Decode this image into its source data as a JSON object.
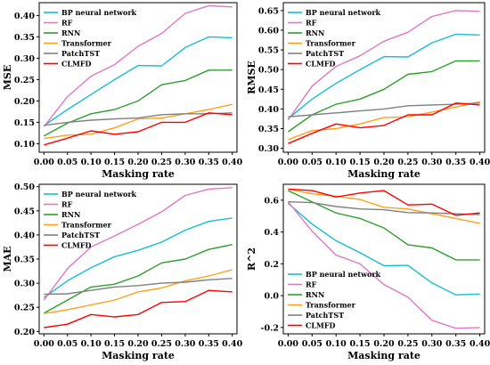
{
  "chart_data": [
    {
      "type": "line",
      "xlabel": "Masking rate",
      "ylabel": "MSE",
      "x": [
        0.0,
        0.05,
        0.1,
        0.15,
        0.2,
        0.25,
        0.3,
        0.35,
        0.4
      ],
      "xlim": [
        -0.01,
        0.41
      ],
      "ylim": [
        0.08,
        0.43
      ],
      "yticks": [
        0.1,
        0.15,
        0.2,
        0.25,
        0.3,
        0.35,
        0.4
      ],
      "ytick_decimals": 2,
      "legend_position": "top-left",
      "series": [
        {
          "name": "BP neural network",
          "color": "#17becf",
          "values": [
            0.142,
            0.18,
            0.215,
            0.25,
            0.283,
            0.282,
            0.325,
            0.35,
            0.348
          ]
        },
        {
          "name": "RF",
          "color": "#e377c2",
          "values": [
            0.14,
            0.21,
            0.258,
            0.285,
            0.328,
            0.358,
            0.405,
            0.423,
            0.42
          ]
        },
        {
          "name": "RNN",
          "color": "#2ca02c",
          "values": [
            0.118,
            0.148,
            0.17,
            0.18,
            0.2,
            0.238,
            0.248,
            0.272,
            0.272
          ]
        },
        {
          "name": "Transformer",
          "color": "#ff9f1c",
          "values": [
            0.112,
            0.12,
            0.122,
            0.137,
            0.158,
            0.16,
            0.17,
            0.18,
            0.192
          ]
        },
        {
          "name": "PatchTST",
          "color": "#808080",
          "values": [
            0.143,
            0.15,
            0.155,
            0.158,
            0.16,
            0.168,
            0.17,
            0.17,
            0.172
          ]
        },
        {
          "name": "CLMFD",
          "color": "#ff0000",
          "values": [
            0.097,
            0.113,
            0.13,
            0.122,
            0.128,
            0.15,
            0.15,
            0.172,
            0.168
          ]
        }
      ]
    },
    {
      "type": "line",
      "xlabel": "Masking rate",
      "ylabel": "RMSE",
      "x": [
        0.0,
        0.05,
        0.1,
        0.15,
        0.2,
        0.25,
        0.3,
        0.35,
        0.4
      ],
      "xlim": [
        -0.01,
        0.41
      ],
      "ylim": [
        0.29,
        0.67
      ],
      "yticks": [
        0.3,
        0.35,
        0.4,
        0.45,
        0.5,
        0.55,
        0.6,
        0.65
      ],
      "ytick_decimals": 2,
      "legend_position": "top-left",
      "series": [
        {
          "name": "BP neural network",
          "color": "#17becf",
          "values": [
            0.375,
            0.425,
            0.465,
            0.5,
            0.533,
            0.532,
            0.568,
            0.59,
            0.588
          ]
        },
        {
          "name": "RF",
          "color": "#e377c2",
          "values": [
            0.372,
            0.458,
            0.508,
            0.535,
            0.572,
            0.595,
            0.635,
            0.65,
            0.648
          ]
        },
        {
          "name": "RNN",
          "color": "#2ca02c",
          "values": [
            0.342,
            0.385,
            0.412,
            0.425,
            0.45,
            0.488,
            0.495,
            0.522,
            0.522
          ]
        },
        {
          "name": "Transformer",
          "color": "#ff9f1c",
          "values": [
            0.322,
            0.345,
            0.35,
            0.362,
            0.378,
            0.38,
            0.392,
            0.405,
            0.418
          ]
        },
        {
          "name": "PatchTST",
          "color": "#808080",
          "values": [
            0.38,
            0.385,
            0.39,
            0.395,
            0.4,
            0.408,
            0.41,
            0.412,
            0.415
          ]
        },
        {
          "name": "CLMFD",
          "color": "#ff0000",
          "values": [
            0.312,
            0.338,
            0.362,
            0.352,
            0.358,
            0.385,
            0.385,
            0.415,
            0.41
          ]
        }
      ]
    },
    {
      "type": "line",
      "xlabel": "Masking rate",
      "ylabel": "MAE",
      "x": [
        0.0,
        0.05,
        0.1,
        0.15,
        0.2,
        0.25,
        0.3,
        0.35,
        0.4
      ],
      "xlim": [
        -0.01,
        0.41
      ],
      "ylim": [
        0.195,
        0.505
      ],
      "yticks": [
        0.2,
        0.25,
        0.3,
        0.35,
        0.4,
        0.45,
        0.5
      ],
      "ytick_decimals": 2,
      "legend_position": "top-left",
      "series": [
        {
          "name": "BP neural network",
          "color": "#17becf",
          "values": [
            0.27,
            0.305,
            0.332,
            0.355,
            0.368,
            0.385,
            0.41,
            0.428,
            0.435
          ]
        },
        {
          "name": "RF",
          "color": "#e377c2",
          "values": [
            0.265,
            0.33,
            0.375,
            0.398,
            0.422,
            0.448,
            0.482,
            0.495,
            0.498
          ]
        },
        {
          "name": "RNN",
          "color": "#2ca02c",
          "values": [
            0.238,
            0.265,
            0.292,
            0.298,
            0.315,
            0.342,
            0.35,
            0.37,
            0.38
          ]
        },
        {
          "name": "Transformer",
          "color": "#ff9f1c",
          "values": [
            0.237,
            0.245,
            0.255,
            0.265,
            0.282,
            0.29,
            0.305,
            0.315,
            0.328
          ]
        },
        {
          "name": "PatchTST",
          "color": "#808080",
          "values": [
            0.277,
            0.278,
            0.285,
            0.292,
            0.295,
            0.3,
            0.302,
            0.307,
            0.31
          ]
        },
        {
          "name": "CLMFD",
          "color": "#ff0000",
          "values": [
            0.208,
            0.215,
            0.235,
            0.23,
            0.235,
            0.26,
            0.262,
            0.285,
            0.282
          ]
        }
      ]
    },
    {
      "type": "line",
      "xlabel": "Masking rate",
      "ylabel": "R^2",
      "x": [
        0.0,
        0.05,
        0.1,
        0.15,
        0.2,
        0.25,
        0.3,
        0.35,
        0.4
      ],
      "xlim": [
        -0.01,
        0.41
      ],
      "ylim": [
        -0.24,
        0.7
      ],
      "yticks": [
        -0.2,
        0.0,
        0.2,
        0.4,
        0.6
      ],
      "ytick_decimals": 1,
      "legend_position": "bottom-left",
      "series": [
        {
          "name": "BP neural network",
          "color": "#17becf",
          "values": [
            0.58,
            0.45,
            0.345,
            0.27,
            0.188,
            0.19,
            0.08,
            0.005,
            0.01
          ]
        },
        {
          "name": "RF",
          "color": "#e377c2",
          "values": [
            0.59,
            0.405,
            0.255,
            0.2,
            0.07,
            -0.01,
            -0.155,
            -0.205,
            -0.2
          ]
        },
        {
          "name": "RNN",
          "color": "#2ca02c",
          "values": [
            0.66,
            0.59,
            0.52,
            0.485,
            0.425,
            0.32,
            0.3,
            0.225,
            0.225
          ]
        },
        {
          "name": "Transformer",
          "color": "#ff9f1c",
          "values": [
            0.67,
            0.64,
            0.625,
            0.605,
            0.555,
            0.545,
            0.515,
            0.485,
            0.455
          ]
        },
        {
          "name": "PatchTST",
          "color": "#808080",
          "values": [
            0.59,
            0.585,
            0.56,
            0.545,
            0.54,
            0.522,
            0.52,
            0.515,
            0.51
          ]
        },
        {
          "name": "CLMFD",
          "color": "#ff0000",
          "values": [
            0.67,
            0.66,
            0.62,
            0.645,
            0.66,
            0.57,
            0.575,
            0.505,
            0.52
          ]
        }
      ]
    }
  ]
}
